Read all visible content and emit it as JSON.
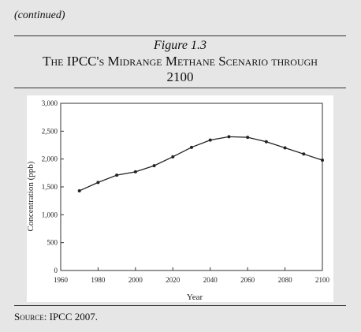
{
  "header": {
    "continued": "(continued)"
  },
  "figure": {
    "label": "Figure 1.3",
    "title": "The IPCC's Midrange Methane Scenario through 2100"
  },
  "source": {
    "prefix": "Source:",
    "text": "IPCC 2007."
  },
  "chart_data": {
    "type": "line",
    "title": "",
    "xlabel": "Year",
    "ylabel": "Concentration (ppb)",
    "xlim": [
      1960,
      2100
    ],
    "ylim": [
      0,
      3000
    ],
    "xticks": [
      "1960",
      "1980",
      "2000",
      "2020",
      "2040",
      "2060",
      "2080",
      "2100"
    ],
    "yticks": [
      "0",
      "500",
      "1,000",
      "1,500",
      "2,000",
      "2,500",
      "3,000"
    ],
    "grid": false,
    "series": [
      {
        "color": "#222222",
        "x": [
          1970,
          1980,
          1990,
          2000,
          2010,
          2020,
          2030,
          2040,
          2050,
          2060,
          2070,
          2080,
          2090,
          2100
        ],
        "y": [
          1430,
          1580,
          1710,
          1770,
          1880,
          2040,
          2210,
          2340,
          2400,
          2390,
          2310,
          2200,
          2090,
          1980
        ]
      }
    ]
  }
}
